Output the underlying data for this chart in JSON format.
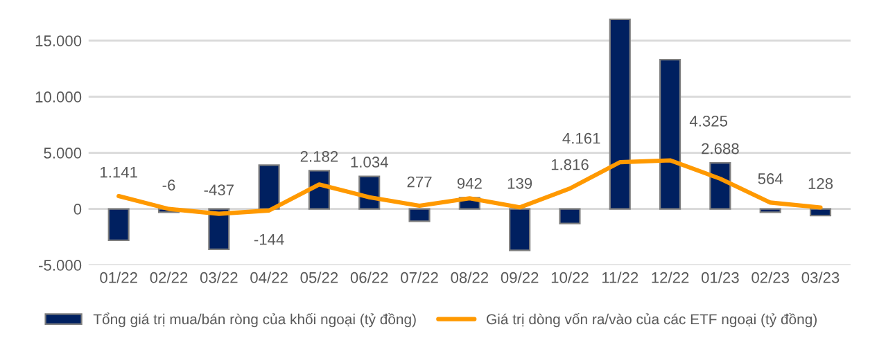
{
  "chart_data": {
    "type": "bar",
    "categories": [
      "01/22",
      "02/22",
      "03/22",
      "04/22",
      "05/22",
      "06/22",
      "07/22",
      "08/22",
      "09/22",
      "10/22",
      "11/22",
      "12/22",
      "01/23",
      "02/23",
      "03/23"
    ],
    "series": [
      {
        "name": "Tổng giá trị mua/bán ròng của khối ngoại (tỷ đồng)",
        "color": "#002060",
        "values": [
          -2800,
          -300,
          -3600,
          3900,
          3400,
          2900,
          -1100,
          1000,
          -3700,
          -1300,
          16900,
          13300,
          4100,
          -300,
          -600
        ]
      },
      {
        "name": "Giá trị dòng vốn ra/vào của các ETF ngoại (tỷ đồng)",
        "type": "line",
        "color": "#ff9900",
        "values": [
          1141,
          -6,
          -437,
          -144,
          2182,
          1034,
          277,
          942,
          139,
          1816,
          4161,
          4325,
          2688,
          564,
          128
        ],
        "value_labels": [
          "1.141",
          "-6",
          "-437",
          "-144",
          "2.182",
          "1.034",
          "277",
          "942",
          "139",
          "1.816",
          "4.161",
          "4.325",
          "2.688",
          "564",
          "128"
        ]
      }
    ],
    "ylim": [
      -5000,
      17000
    ],
    "yticks": [
      {
        "value": -5000,
        "label": "-5.000"
      },
      {
        "value": 0,
        "label": "0"
      },
      {
        "value": 5000,
        "label": "5.000"
      },
      {
        "value": 10000,
        "label": "10.000"
      },
      {
        "value": 15000,
        "label": "15.000"
      }
    ],
    "grid": "y",
    "legend": "bottom",
    "marker": "none",
    "line_style": "solid"
  }
}
